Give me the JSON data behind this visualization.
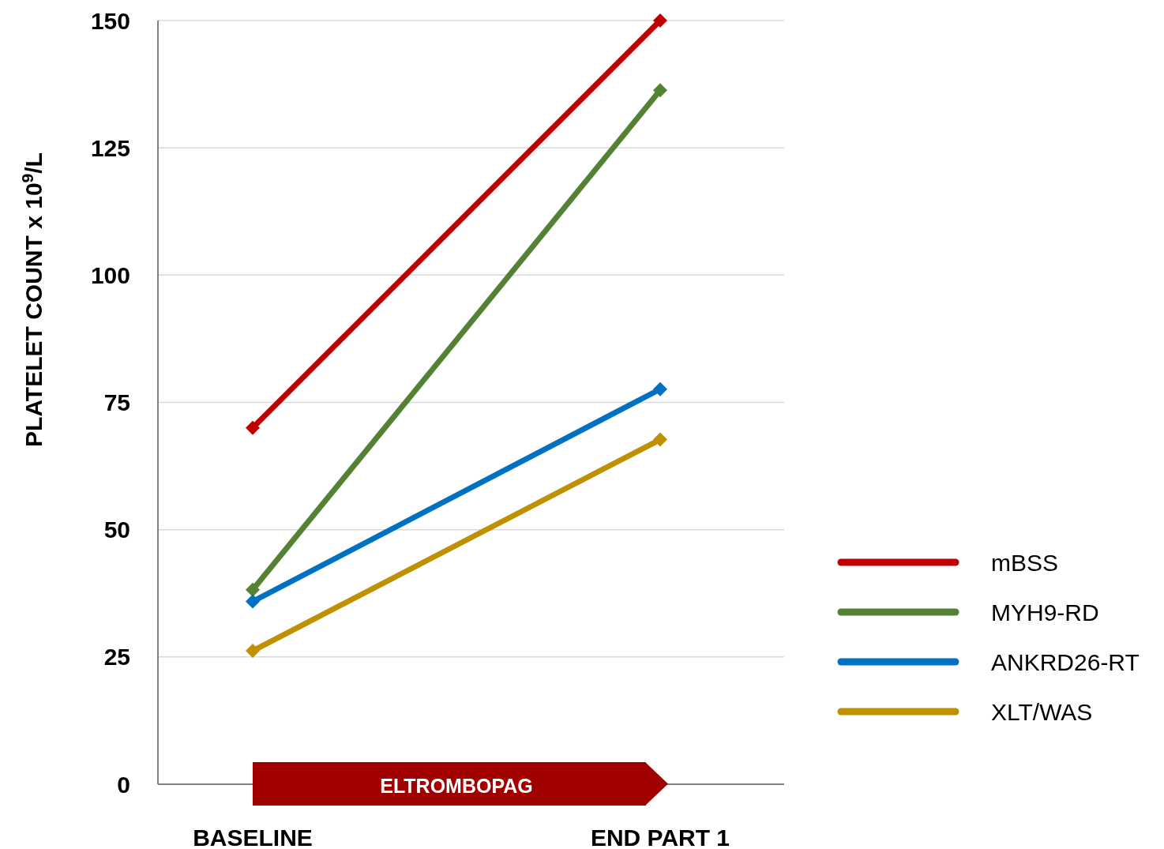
{
  "chart_data": {
    "type": "line",
    "ylabel": "PLATELET COUNT x 10$^{9}$/L",
    "categories": [
      "BASELINE",
      "END PART 1"
    ],
    "series": [
      {
        "name": "mBSS",
        "color": "#c00000",
        "values": [
          70,
          150
        ]
      },
      {
        "name": "MYH9-RD",
        "color": "#548235",
        "values": [
          38.2,
          136.3
        ]
      },
      {
        "name": "ANKRD26-RT",
        "color": "#0070c0",
        "values": [
          35.9,
          77.6
        ]
      },
      {
        "name": "XLT/WAS",
        "color": "#bf9000",
        "values": [
          26.2,
          67.7
        ]
      }
    ],
    "ylim": [
      0,
      150
    ],
    "yticks": [
      0,
      25,
      50,
      75,
      100,
      125,
      150
    ],
    "grid": "y",
    "legend": "right",
    "marker": "diamond",
    "line_style": "solid",
    "annotations": [
      "ELTROMBOPAG"
    ]
  }
}
